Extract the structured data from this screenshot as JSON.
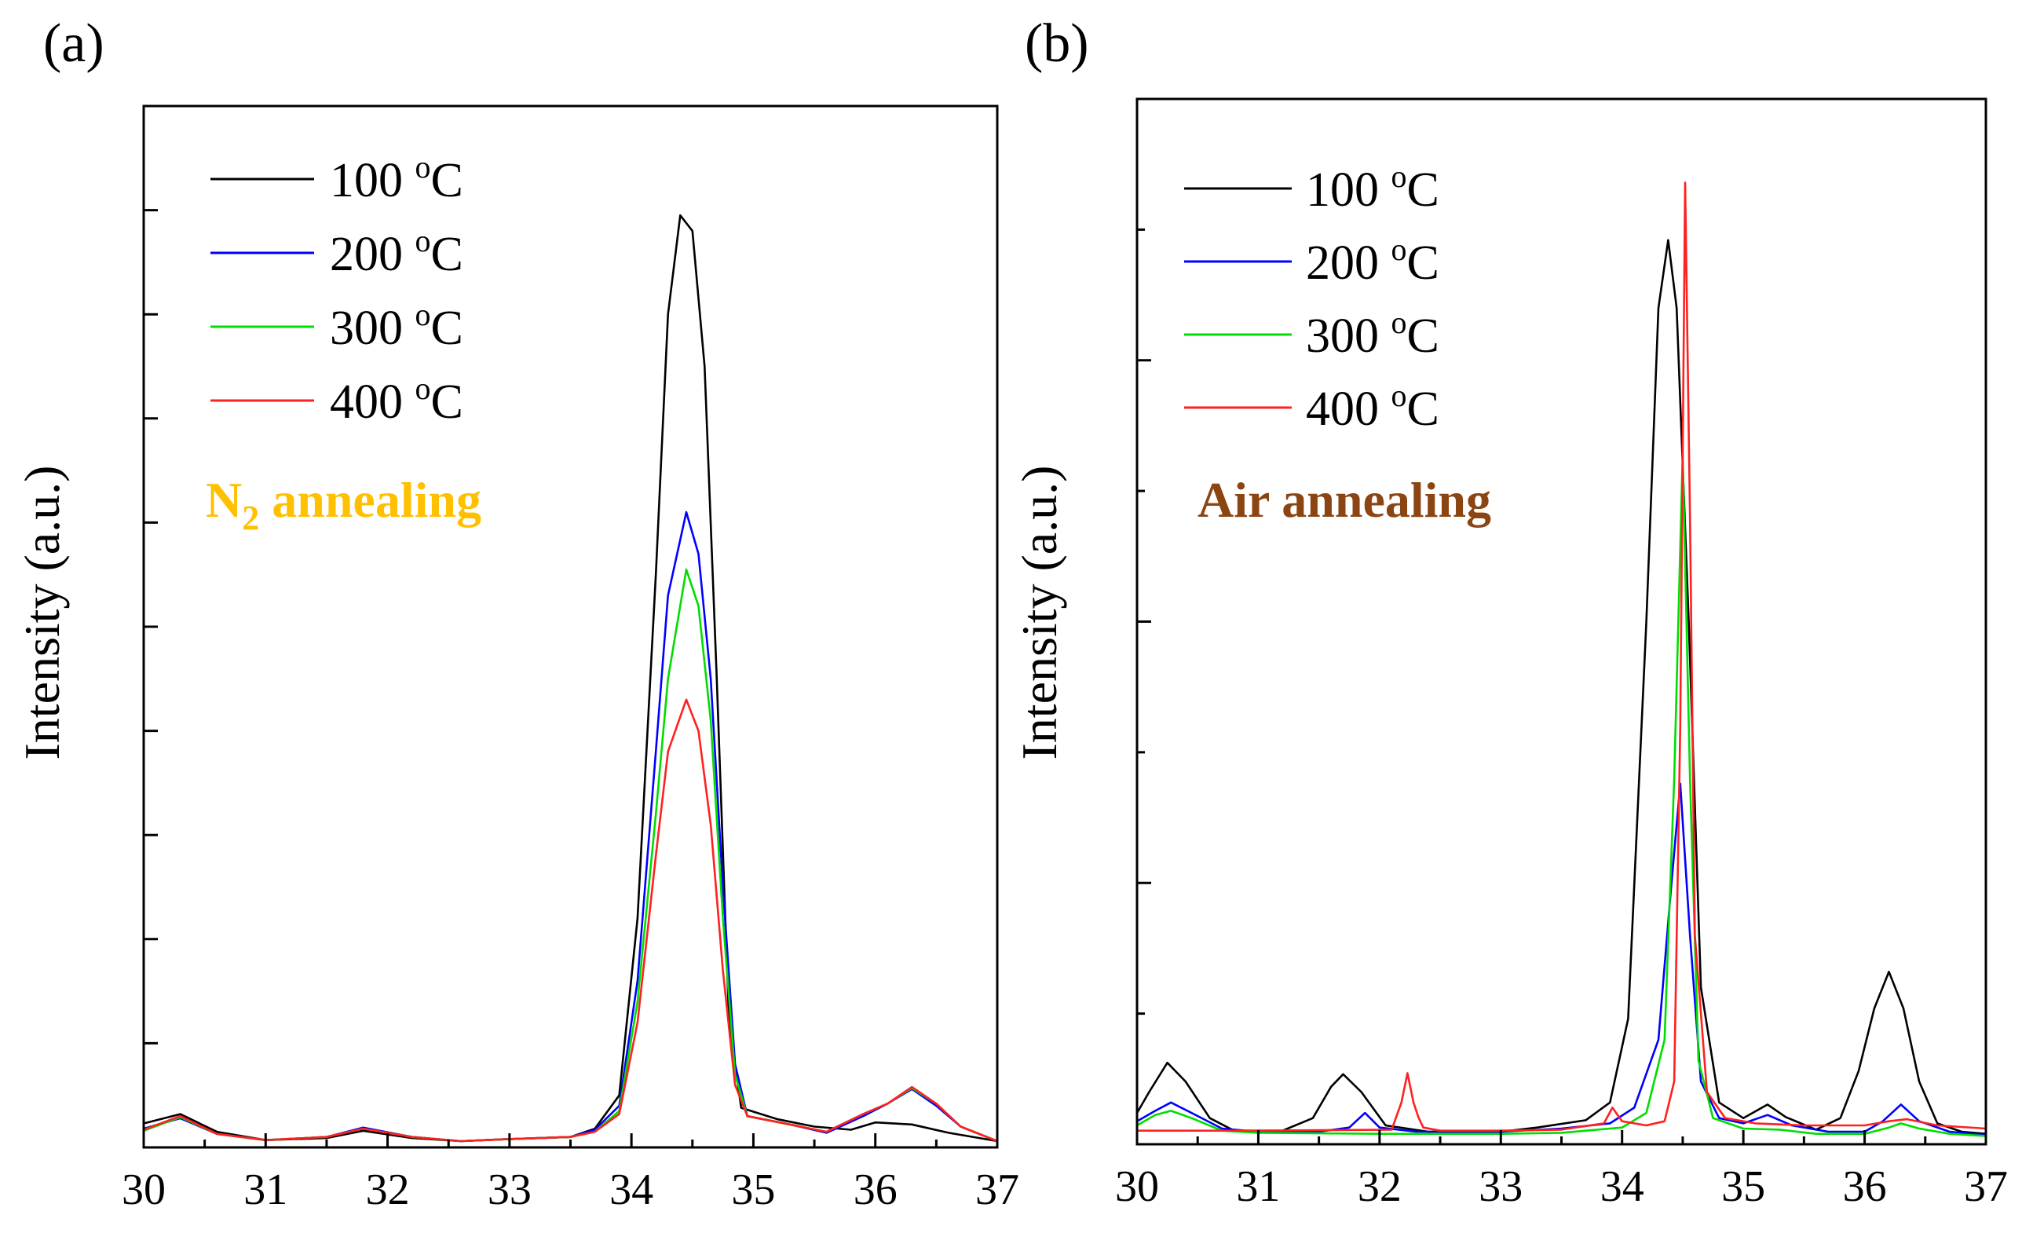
{
  "chart_data": [
    {
      "type": "line",
      "panel_label": "(a)",
      "xlabel": "",
      "ylabel": "Intensity (a.u.)",
      "xlim": [
        30,
        37
      ],
      "ylim": [
        0,
        100
      ],
      "x_ticks": [
        "30",
        "31",
        "32",
        "33",
        "34",
        "35",
        "36",
        "37"
      ],
      "y_tick_labels": false,
      "annotation": {
        "main": "N",
        "sub": "2",
        "rest": " annealing",
        "color": "#FFC000"
      },
      "legend": {
        "position": "top-left"
      },
      "series": [
        {
          "name": "100 °C",
          "label_num": "100 ",
          "label_deg": "o",
          "label_unit": "C",
          "color": "#000000",
          "points": [
            [
              30,
              2.3
            ],
            [
              30.3,
              3.2
            ],
            [
              30.6,
              1.5
            ],
            [
              31,
              0.7
            ],
            [
              31.5,
              0.9
            ],
            [
              31.8,
              1.6
            ],
            [
              32.2,
              0.9
            ],
            [
              32.6,
              0.6
            ],
            [
              33,
              0.8
            ],
            [
              33.5,
              1.0
            ],
            [
              33.7,
              1.8
            ],
            [
              33.9,
              5
            ],
            [
              34.05,
              22
            ],
            [
              34.2,
              55
            ],
            [
              34.3,
              80
            ],
            [
              34.4,
              89.5
            ],
            [
              34.5,
              88
            ],
            [
              34.6,
              75
            ],
            [
              34.7,
              45
            ],
            [
              34.8,
              12
            ],
            [
              34.9,
              3.8
            ],
            [
              35.2,
              2.7
            ],
            [
              35.5,
              2.0
            ],
            [
              35.8,
              1.7
            ],
            [
              36.0,
              2.4
            ],
            [
              36.3,
              2.2
            ],
            [
              36.6,
              1.4
            ],
            [
              37,
              0.6
            ]
          ]
        },
        {
          "name": "200 °C",
          "label_num": "200 ",
          "label_deg": "o",
          "label_unit": "C",
          "color": "#0000FF",
          "points": [
            [
              30,
              1.8
            ],
            [
              30.3,
              2.8
            ],
            [
              30.6,
              1.3
            ],
            [
              31,
              0.7
            ],
            [
              31.5,
              1.0
            ],
            [
              31.8,
              1.9
            ],
            [
              32.2,
              1.0
            ],
            [
              32.6,
              0.6
            ],
            [
              33,
              0.8
            ],
            [
              33.5,
              1.0
            ],
            [
              33.7,
              1.7
            ],
            [
              33.9,
              4
            ],
            [
              34.05,
              16
            ],
            [
              34.2,
              38
            ],
            [
              34.3,
              53
            ],
            [
              34.45,
              61
            ],
            [
              34.55,
              57
            ],
            [
              34.65,
              45
            ],
            [
              34.75,
              25
            ],
            [
              34.85,
              8
            ],
            [
              34.95,
              3
            ],
            [
              35.3,
              2.2
            ],
            [
              35.6,
              1.4
            ],
            [
              35.9,
              3.0
            ],
            [
              36.1,
              4.2
            ],
            [
              36.3,
              5.6
            ],
            [
              36.5,
              4.0
            ],
            [
              36.7,
              2.0
            ],
            [
              37,
              0.6
            ]
          ]
        },
        {
          "name": "300 °C",
          "label_num": "300 ",
          "label_deg": "o",
          "label_unit": "C",
          "color": "#00DD00",
          "points": [
            [
              30,
              1.6
            ],
            [
              30.3,
              2.9
            ],
            [
              30.6,
              1.3
            ],
            [
              31,
              0.7
            ],
            [
              31.5,
              1.0
            ],
            [
              31.8,
              1.8
            ],
            [
              32.2,
              1.0
            ],
            [
              32.6,
              0.6
            ],
            [
              33,
              0.8
            ],
            [
              33.5,
              1.0
            ],
            [
              33.7,
              1.5
            ],
            [
              33.9,
              3.5
            ],
            [
              34.05,
              14
            ],
            [
              34.2,
              32
            ],
            [
              34.3,
              45
            ],
            [
              34.45,
              55.5
            ],
            [
              34.55,
              52
            ],
            [
              34.65,
              41
            ],
            [
              34.75,
              22
            ],
            [
              34.85,
              7
            ],
            [
              34.95,
              3
            ],
            [
              35.3,
              2.2
            ],
            [
              35.6,
              1.5
            ],
            [
              35.9,
              3.2
            ],
            [
              36.1,
              4.2
            ],
            [
              36.3,
              5.7
            ],
            [
              36.5,
              4.2
            ],
            [
              36.7,
              2.0
            ],
            [
              37,
              0.6
            ]
          ]
        },
        {
          "name": "400 °C",
          "label_num": "400 ",
          "label_deg": "o",
          "label_unit": "C",
          "color": "#FF2020",
          "points": [
            [
              30,
              1.7
            ],
            [
              30.3,
              3.0
            ],
            [
              30.6,
              1.3
            ],
            [
              31,
              0.7
            ],
            [
              31.5,
              1.0
            ],
            [
              31.8,
              1.8
            ],
            [
              32.2,
              1.0
            ],
            [
              32.6,
              0.6
            ],
            [
              33,
              0.8
            ],
            [
              33.5,
              1.0
            ],
            [
              33.7,
              1.5
            ],
            [
              33.9,
              3.2
            ],
            [
              34.05,
              12
            ],
            [
              34.2,
              28
            ],
            [
              34.3,
              38
            ],
            [
              34.45,
              43
            ],
            [
              34.55,
              40
            ],
            [
              34.65,
              31
            ],
            [
              34.75,
              17
            ],
            [
              34.85,
              6
            ],
            [
              34.95,
              3
            ],
            [
              35.3,
              2.2
            ],
            [
              35.6,
              1.5
            ],
            [
              35.9,
              3.2
            ],
            [
              36.1,
              4.2
            ],
            [
              36.3,
              5.8
            ],
            [
              36.5,
              4.2
            ],
            [
              36.7,
              2.0
            ],
            [
              37,
              0.6
            ]
          ]
        }
      ]
    },
    {
      "type": "line",
      "panel_label": "(b)",
      "xlabel": "",
      "ylabel": "Intensity (a.u.)",
      "xlim": [
        30,
        37
      ],
      "ylim": [
        0,
        100
      ],
      "x_ticks": [
        "30",
        "31",
        "32",
        "33",
        "34",
        "35",
        "36",
        "37"
      ],
      "y_tick_labels": false,
      "annotation": {
        "main": "Air annealing",
        "sub": "",
        "rest": "",
        "color": "#8B4513"
      },
      "legend": {
        "position": "top-left"
      },
      "series": [
        {
          "name": "100 °C",
          "label_num": "100 ",
          "label_deg": "o",
          "label_unit": "C",
          "color": "#000000",
          "points": [
            [
              30,
              3
            ],
            [
              30.1,
              5
            ],
            [
              30.25,
              7.8
            ],
            [
              30.4,
              6
            ],
            [
              30.6,
              2.5
            ],
            [
              30.8,
              1.3
            ],
            [
              31.2,
              1.3
            ],
            [
              31.45,
              2.5
            ],
            [
              31.6,
              5.5
            ],
            [
              31.7,
              6.7
            ],
            [
              31.85,
              5
            ],
            [
              32.05,
              1.8
            ],
            [
              32.4,
              1.2
            ],
            [
              33,
              1.2
            ],
            [
              33.3,
              1.6
            ],
            [
              33.7,
              2.3
            ],
            [
              33.9,
              4
            ],
            [
              34.05,
              12
            ],
            [
              34.2,
              50
            ],
            [
              34.3,
              80
            ],
            [
              34.38,
              86.5
            ],
            [
              34.45,
              80
            ],
            [
              34.55,
              50
            ],
            [
              34.65,
              15
            ],
            [
              34.8,
              4
            ],
            [
              35.0,
              2.5
            ],
            [
              35.2,
              3.8
            ],
            [
              35.35,
              2.6
            ],
            [
              35.6,
              1.4
            ],
            [
              35.8,
              2.5
            ],
            [
              35.95,
              7
            ],
            [
              36.08,
              13
            ],
            [
              36.2,
              16.5
            ],
            [
              36.32,
              13
            ],
            [
              36.45,
              6
            ],
            [
              36.6,
              2
            ],
            [
              36.8,
              1.2
            ],
            [
              37,
              1.0
            ]
          ]
        },
        {
          "name": "200 °C",
          "label_num": "200 ",
          "label_deg": "o",
          "label_unit": "C",
          "color": "#0000FF",
          "points": [
            [
              30,
              2.2
            ],
            [
              30.15,
              3.2
            ],
            [
              30.28,
              4.0
            ],
            [
              30.45,
              3.0
            ],
            [
              30.7,
              1.5
            ],
            [
              31,
              1.2
            ],
            [
              31.5,
              1.2
            ],
            [
              31.75,
              1.6
            ],
            [
              31.88,
              3.0
            ],
            [
              32.0,
              1.6
            ],
            [
              32.3,
              1.2
            ],
            [
              33,
              1.2
            ],
            [
              33.5,
              1.5
            ],
            [
              33.9,
              2.0
            ],
            [
              34.1,
              3.5
            ],
            [
              34.3,
              10
            ],
            [
              34.4,
              24
            ],
            [
              34.48,
              34.5
            ],
            [
              34.56,
              20
            ],
            [
              34.65,
              6
            ],
            [
              34.8,
              2.5
            ],
            [
              35.0,
              2.0
            ],
            [
              35.2,
              2.8
            ],
            [
              35.4,
              1.8
            ],
            [
              35.7,
              1.2
            ],
            [
              36.0,
              1.2
            ],
            [
              36.15,
              2.2
            ],
            [
              36.3,
              3.8
            ],
            [
              36.45,
              2.2
            ],
            [
              36.7,
              1.2
            ],
            [
              37,
              0.9
            ]
          ]
        },
        {
          "name": "300 °C",
          "label_num": "300 ",
          "label_deg": "o",
          "label_unit": "C",
          "color": "#00DD00",
          "points": [
            [
              30,
              1.8
            ],
            [
              30.15,
              2.8
            ],
            [
              30.28,
              3.2
            ],
            [
              30.45,
              2.5
            ],
            [
              30.7,
              1.3
            ],
            [
              31,
              1.1
            ],
            [
              32,
              1.0
            ],
            [
              33,
              1.0
            ],
            [
              33.5,
              1.1
            ],
            [
              34,
              1.6
            ],
            [
              34.2,
              3
            ],
            [
              34.35,
              10
            ],
            [
              34.43,
              35
            ],
            [
              34.5,
              66
            ],
            [
              34.56,
              35
            ],
            [
              34.63,
              8
            ],
            [
              34.75,
              2.5
            ],
            [
              35,
              1.5
            ],
            [
              35.3,
              1.4
            ],
            [
              35.6,
              1.0
            ],
            [
              36,
              1.0
            ],
            [
              36.2,
              1.6
            ],
            [
              36.3,
              2.0
            ],
            [
              36.45,
              1.5
            ],
            [
              36.7,
              1.0
            ],
            [
              37,
              0.8
            ]
          ]
        },
        {
          "name": "400 °C",
          "label_num": "400 ",
          "label_deg": "o",
          "label_unit": "C",
          "color": "#FF2020",
          "points": [
            [
              30,
              1.3
            ],
            [
              31,
              1.3
            ],
            [
              32.1,
              1.4
            ],
            [
              32.18,
              4.0
            ],
            [
              32.23,
              6.8
            ],
            [
              32.28,
              4.0
            ],
            [
              32.32,
              2.6
            ],
            [
              32.36,
              1.6
            ],
            [
              32.5,
              1.3
            ],
            [
              33,
              1.3
            ],
            [
              33.5,
              1.4
            ],
            [
              33.85,
              2.0
            ],
            [
              33.92,
              3.5
            ],
            [
              34.0,
              2.2
            ],
            [
              34.2,
              1.8
            ],
            [
              34.35,
              2.2
            ],
            [
              34.43,
              6
            ],
            [
              34.48,
              40
            ],
            [
              34.52,
              92
            ],
            [
              34.56,
              60
            ],
            [
              34.6,
              20
            ],
            [
              34.7,
              5
            ],
            [
              34.85,
              2.5
            ],
            [
              35.1,
              2.0
            ],
            [
              35.5,
              1.8
            ],
            [
              36.0,
              1.8
            ],
            [
              36.2,
              2.2
            ],
            [
              36.35,
              2.4
            ],
            [
              36.6,
              1.8
            ],
            [
              37,
              1.5
            ]
          ]
        }
      ]
    }
  ]
}
